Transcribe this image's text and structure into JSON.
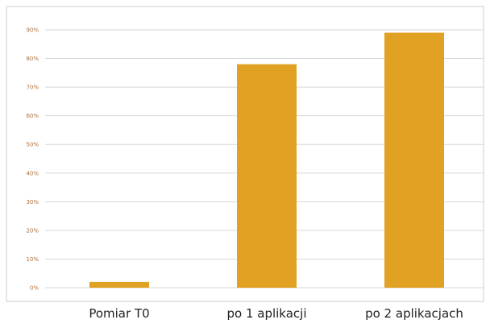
{
  "chart_data": {
    "type": "bar",
    "categories": [
      "Pomiar T0",
      "po 1 aplikacji",
      "po 2 aplikacjach"
    ],
    "values": [
      2,
      78,
      89
    ],
    "ylim": [
      0,
      90
    ],
    "yticks": [
      "0%",
      "10%",
      "20%",
      "30%",
      "40%",
      "50%",
      "60%",
      "70%",
      "80%",
      "90%"
    ],
    "grid": true,
    "bar_color": "#E1A223",
    "tick_label_color": "#B0703A",
    "gridline_color": "#d6d6d6",
    "frame_color": "#cfcfcf"
  }
}
